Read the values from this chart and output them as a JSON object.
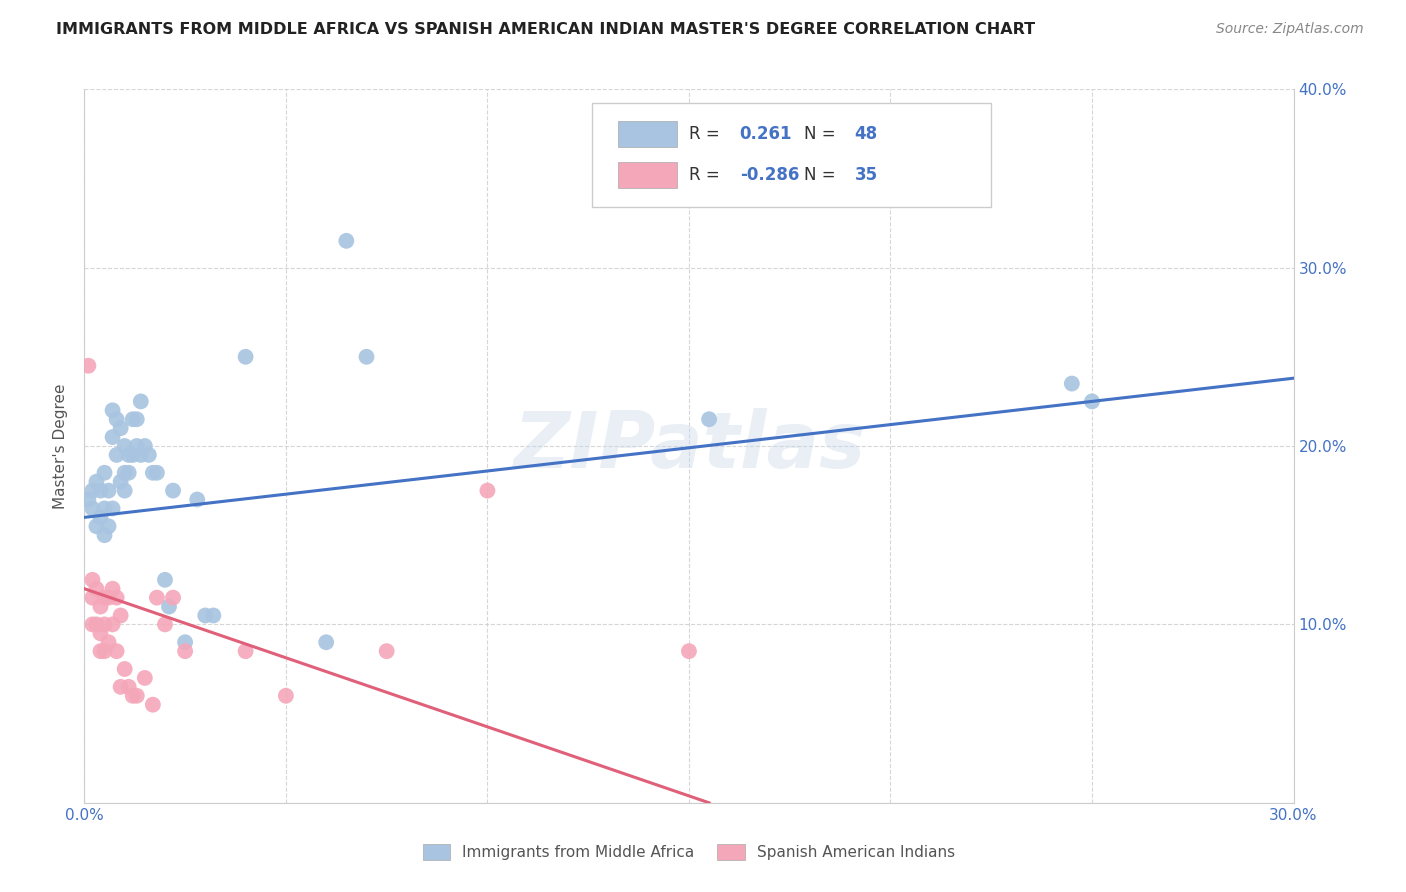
{
  "title": "IMMIGRANTS FROM MIDDLE AFRICA VS SPANISH AMERICAN INDIAN MASTER'S DEGREE CORRELATION CHART",
  "source": "Source: ZipAtlas.com",
  "ylabel": "Master's Degree",
  "xlim": [
    0.0,
    0.3
  ],
  "ylim": [
    0.0,
    0.4
  ],
  "background_color": "#ffffff",
  "watermark": "ZIPatlas",
  "blue_color": "#a8c4e0",
  "pink_color": "#f4a7b9",
  "blue_line_color": "#4472c4",
  "pink_line_color": "#e0607a",
  "legend_R_blue": "0.261",
  "legend_N_blue": "48",
  "legend_R_pink": "-0.286",
  "legend_N_pink": "35",
  "tick_color": "#4472c4",
  "blue_scatter_x": [
    0.001,
    0.002,
    0.002,
    0.003,
    0.003,
    0.004,
    0.004,
    0.005,
    0.005,
    0.005,
    0.006,
    0.006,
    0.007,
    0.007,
    0.007,
    0.008,
    0.008,
    0.009,
    0.009,
    0.01,
    0.01,
    0.01,
    0.011,
    0.011,
    0.012,
    0.012,
    0.013,
    0.013,
    0.014,
    0.014,
    0.015,
    0.016,
    0.017,
    0.018,
    0.02,
    0.021,
    0.022,
    0.025,
    0.028,
    0.03,
    0.032,
    0.04,
    0.06,
    0.065,
    0.07,
    0.155,
    0.245,
    0.25
  ],
  "blue_scatter_y": [
    0.17,
    0.175,
    0.165,
    0.18,
    0.155,
    0.175,
    0.16,
    0.185,
    0.165,
    0.15,
    0.175,
    0.155,
    0.22,
    0.205,
    0.165,
    0.215,
    0.195,
    0.21,
    0.18,
    0.2,
    0.185,
    0.175,
    0.195,
    0.185,
    0.215,
    0.195,
    0.215,
    0.2,
    0.225,
    0.195,
    0.2,
    0.195,
    0.185,
    0.185,
    0.125,
    0.11,
    0.175,
    0.09,
    0.17,
    0.105,
    0.105,
    0.25,
    0.09,
    0.315,
    0.25,
    0.215,
    0.235,
    0.225
  ],
  "pink_scatter_x": [
    0.001,
    0.002,
    0.002,
    0.002,
    0.003,
    0.003,
    0.004,
    0.004,
    0.004,
    0.005,
    0.005,
    0.005,
    0.006,
    0.006,
    0.007,
    0.007,
    0.008,
    0.008,
    0.009,
    0.009,
    0.01,
    0.011,
    0.012,
    0.013,
    0.015,
    0.017,
    0.018,
    0.02,
    0.022,
    0.025,
    0.04,
    0.05,
    0.075,
    0.1,
    0.15
  ],
  "pink_scatter_y": [
    0.245,
    0.125,
    0.115,
    0.1,
    0.12,
    0.1,
    0.11,
    0.095,
    0.085,
    0.115,
    0.1,
    0.085,
    0.115,
    0.09,
    0.12,
    0.1,
    0.115,
    0.085,
    0.105,
    0.065,
    0.075,
    0.065,
    0.06,
    0.06,
    0.07,
    0.055,
    0.115,
    0.1,
    0.115,
    0.085,
    0.085,
    0.06,
    0.085,
    0.175,
    0.085
  ],
  "blue_trendline_x": [
    0.0,
    0.3
  ],
  "blue_trendline_y": [
    0.16,
    0.238
  ],
  "pink_trendline_x": [
    0.0,
    0.155
  ],
  "pink_trendline_y": [
    0.12,
    0.0
  ]
}
